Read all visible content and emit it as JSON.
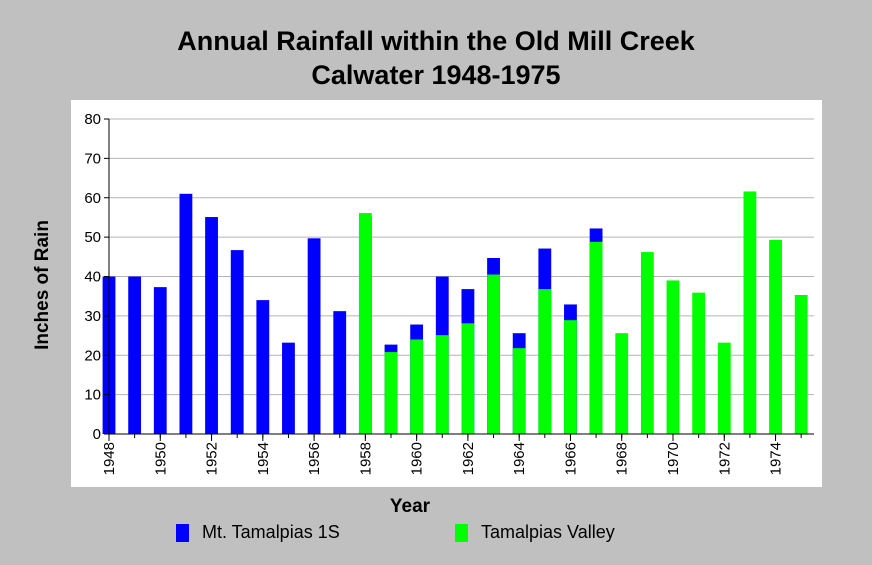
{
  "chart_data": {
    "type": "bar",
    "title": [
      "Annual Rainfall within the Old Mill Creek",
      "Calwater 1948-1975"
    ],
    "xlabel": "Year",
    "ylabel": "Inches of Rain",
    "ylim": [
      0,
      80
    ],
    "yticks": [
      0,
      10,
      20,
      30,
      40,
      50,
      60,
      70,
      80
    ],
    "xlim": [
      1948,
      1975.5
    ],
    "xticks": [
      1948,
      1950,
      1952,
      1954,
      1956,
      1958,
      1960,
      1962,
      1964,
      1966,
      1968,
      1970,
      1972,
      1974
    ],
    "grid": true,
    "legend_position": "bottom",
    "series": [
      {
        "name": "Mt. Tamalpias 1S",
        "color": "#0000ff",
        "x": [
          1948,
          1949,
          1950,
          1951,
          1952,
          1953,
          1954,
          1955,
          1956,
          1957,
          1958,
          1959,
          1960,
          1961,
          1962,
          1963,
          1964,
          1965,
          1966,
          1967
        ],
        "values": [
          40.0,
          40.0,
          37.3,
          61.0,
          55.1,
          46.7,
          34.0,
          23.2,
          49.7,
          31.2,
          55.1,
          22.7,
          27.8,
          40.0,
          36.8,
          44.7,
          25.6,
          47.1,
          32.9,
          52.2
        ]
      },
      {
        "name": "Tamalpias Valley",
        "color": "#00ff00",
        "x": [
          1958,
          1959,
          1960,
          1961,
          1962,
          1963,
          1964,
          1965,
          1966,
          1967,
          1968,
          1969,
          1970,
          1971,
          1972,
          1973,
          1974,
          1975
        ],
        "values": [
          56.1,
          20.8,
          24.0,
          25.1,
          28.1,
          40.5,
          21.8,
          36.8,
          28.9,
          48.8,
          25.6,
          46.2,
          39.0,
          35.9,
          23.2,
          61.6,
          49.3,
          35.3
        ]
      }
    ]
  }
}
